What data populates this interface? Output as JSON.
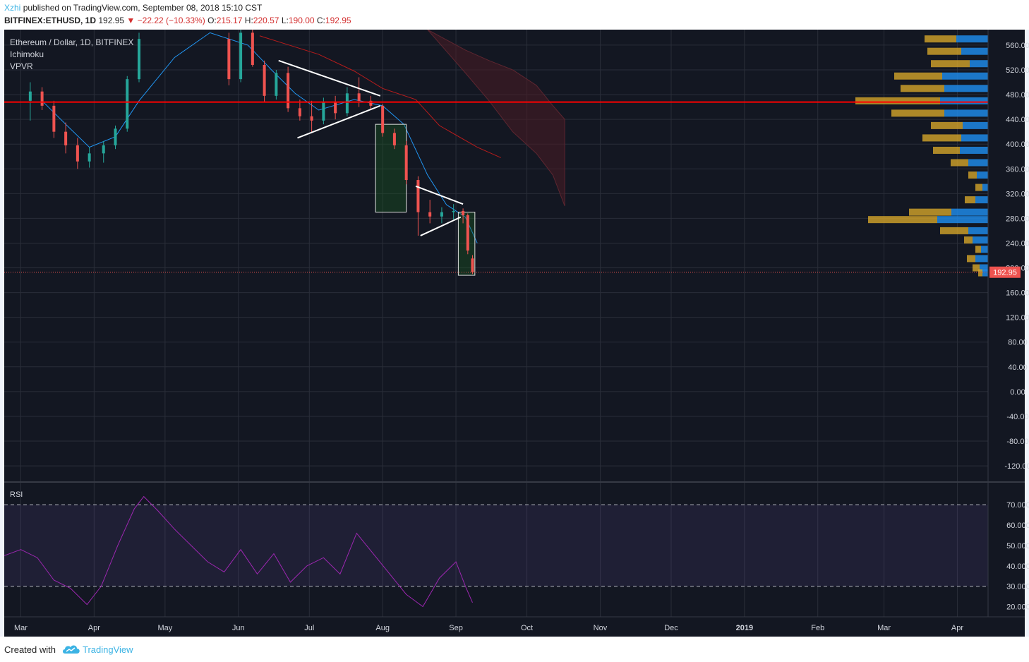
{
  "header": {
    "author": "Xzhi",
    "published": "published on TradingView.com, September 08, 2018 15:10 CST",
    "symbol": "BITFINEX:ETHUSD, 1D",
    "price": "192.95",
    "change_arrow": "▼",
    "change": "−22.22 (−10.33%)",
    "o_label": "O:",
    "o_value": "215.17",
    "h_label": "H:",
    "h_value": "220.57",
    "l_label": "L:",
    "l_value": "190.00",
    "c_label": "C:",
    "c_value": "192.95"
  },
  "legend": {
    "title": "Ethereum / Dollar, 1D, BITFINEX",
    "indicator1": "Ichimoku",
    "indicator2": "VPVR",
    "rsi_label": "RSI"
  },
  "footer": {
    "created": "Created with",
    "brand": "TradingView",
    "logo_icon": "tradingview-cloud-icon"
  },
  "colors": {
    "background": "#131722",
    "grid": "#2a2e39",
    "bull": "#26a69a",
    "bear": "#ef5350",
    "resistance": "#ff0000",
    "tenkan": "#2196f3",
    "kijun": "#b71c1c",
    "rsi": "#9c27b0",
    "vp_up": "#1e88e5",
    "vp_down": "#d4a52a"
  },
  "chart_data": [
    {
      "type": "candlestick",
      "title": "Ethereum / Dollar, 1D, BITFINEX",
      "x_ticks": [
        "Mar",
        "Apr",
        "May",
        "Jun",
        "Jul",
        "Aug",
        "Sep",
        "Oct",
        "Nov",
        "Dec",
        "2019",
        "Feb",
        "Mar",
        "Apr"
      ],
      "y_ticks": [
        "560.00",
        "520.00",
        "480.00",
        "440.00",
        "400.00",
        "360.00",
        "320.00",
        "280.00",
        "240.00",
        "200.00",
        "160.00",
        "120.00",
        "80.00",
        "40.00",
        "0.00",
        "-40.00",
        "-80.00",
        "-120.00"
      ],
      "ylim": [
        -145,
        585
      ],
      "last_price": 192.95,
      "last_price_label": "192.95",
      "resistance_level": 468,
      "x_range": [
        "2018-02-22",
        "2019-04-14"
      ],
      "candles": [
        [
          "2018-03-05",
          470,
          500,
          438,
          485
        ],
        [
          "2018-03-10",
          485,
          492,
          455,
          462
        ],
        [
          "2018-03-15",
          462,
          470,
          410,
          420
        ],
        [
          "2018-03-20",
          420,
          435,
          385,
          398
        ],
        [
          "2018-03-25",
          398,
          410,
          360,
          372
        ],
        [
          "2018-03-30",
          372,
          395,
          362,
          385
        ],
        [
          "2018-04-05",
          385,
          405,
          370,
          398
        ],
        [
          "2018-04-10",
          398,
          430,
          392,
          425
        ],
        [
          "2018-04-15",
          425,
          510,
          420,
          505
        ],
        [
          "2018-04-20",
          505,
          580,
          500,
          570
        ],
        [
          "2018-05-28",
          570,
          580,
          495,
          505
        ],
        [
          "2018-06-02",
          505,
          585,
          500,
          580
        ],
        [
          "2018-06-07",
          580,
          590,
          525,
          528
        ],
        [
          "2018-06-12",
          528,
          535,
          468,
          478
        ],
        [
          "2018-06-17",
          478,
          520,
          472,
          515
        ],
        [
          "2018-06-22",
          515,
          525,
          452,
          458
        ],
        [
          "2018-06-27",
          458,
          472,
          438,
          445
        ],
        [
          "2018-07-02",
          445,
          470,
          418,
          438
        ],
        [
          "2018-07-07",
          438,
          475,
          432,
          468
        ],
        [
          "2018-07-12",
          468,
          478,
          440,
          450
        ],
        [
          "2018-07-17",
          450,
          492,
          445,
          482
        ],
        [
          "2018-07-22",
          482,
          508,
          460,
          470
        ],
        [
          "2018-07-27",
          470,
          478,
          455,
          462
        ],
        [
          "2018-08-01",
          462,
          465,
          412,
          418
        ],
        [
          "2018-08-06",
          418,
          425,
          392,
          398
        ],
        [
          "2018-08-11",
          398,
          405,
          335,
          342
        ],
        [
          "2018-08-16",
          342,
          348,
          252,
          290
        ],
        [
          "2018-08-21",
          290,
          310,
          272,
          283
        ],
        [
          "2018-08-26",
          283,
          298,
          272,
          290
        ],
        [
          "2018-08-31",
          290,
          303,
          278,
          292
        ],
        [
          "2018-09-04",
          292,
          296,
          272,
          285
        ],
        [
          "2018-09-06",
          285,
          288,
          222,
          228
        ],
        [
          "2018-09-08",
          215.17,
          220.57,
          190.0,
          192.95
        ]
      ],
      "tenkan": [
        [
          "2018-03-10",
          470
        ],
        [
          "2018-03-20",
          432
        ],
        [
          "2018-03-30",
          395
        ],
        [
          "2018-04-10",
          412
        ],
        [
          "2018-04-20",
          470
        ],
        [
          "2018-05-05",
          540
        ],
        [
          "2018-05-20",
          580
        ],
        [
          "2018-06-05",
          560
        ],
        [
          "2018-06-15",
          520
        ],
        [
          "2018-06-25",
          482
        ],
        [
          "2018-07-05",
          455
        ],
        [
          "2018-07-20",
          472
        ],
        [
          "2018-08-01",
          462
        ],
        [
          "2018-08-10",
          432
        ],
        [
          "2018-08-20",
          350
        ],
        [
          "2018-08-28",
          302
        ],
        [
          "2018-09-05",
          282
        ],
        [
          "2018-09-10",
          240
        ]
      ],
      "kijun": [
        [
          "2018-06-10",
          575
        ],
        [
          "2018-07-05",
          545
        ],
        [
          "2018-07-20",
          518
        ],
        [
          "2018-08-01",
          490
        ],
        [
          "2018-08-15",
          472
        ],
        [
          "2018-08-25",
          430
        ],
        [
          "2018-09-10",
          395
        ],
        [
          "2018-09-20",
          378
        ]
      ],
      "cloud": [
        [
          "2018-08-20",
          585,
          585
        ],
        [
          "2018-09-05",
          552,
          515
        ],
        [
          "2018-09-15",
          535,
          470
        ],
        [
          "2018-09-25",
          520,
          420
        ],
        [
          "2018-10-05",
          495,
          385
        ],
        [
          "2018-10-12",
          462,
          350
        ],
        [
          "2018-10-17",
          440,
          300
        ]
      ],
      "triangles": [
        {
          "upper": [
            [
              "2018-06-18",
              535
            ],
            [
              "2018-07-31",
              478
            ]
          ],
          "lower": [
            [
              "2018-06-26",
              410
            ],
            [
              "2018-07-31",
              462
            ]
          ]
        },
        {
          "upper": [
            [
              "2018-08-15",
              332
            ],
            [
              "2018-09-04",
              303
            ]
          ],
          "lower": [
            [
              "2018-08-17",
              252
            ],
            [
              "2018-09-03",
              282
            ]
          ]
        }
      ],
      "boxes": [
        {
          "x0": "2018-07-29",
          "x1": "2018-08-11",
          "y_top": 432,
          "y_bottom": 290
        },
        {
          "x0": "2018-09-02",
          "x1": "2018-09-09",
          "y_top": 290,
          "y_bottom": 188
        }
      ],
      "volume_profile": [
        [
          570,
          45,
          45
        ],
        [
          550,
          38,
          48
        ],
        [
          530,
          26,
          55
        ],
        [
          510,
          65,
          68
        ],
        [
          490,
          62,
          62
        ],
        [
          470,
          68,
          120
        ],
        [
          450,
          62,
          75
        ],
        [
          430,
          36,
          45
        ],
        [
          410,
          38,
          55
        ],
        [
          390,
          40,
          38
        ],
        [
          370,
          28,
          25
        ],
        [
          350,
          16,
          12
        ],
        [
          330,
          8,
          10
        ],
        [
          310,
          18,
          15
        ],
        [
          290,
          52,
          60
        ],
        [
          278,
          72,
          98
        ],
        [
          260,
          28,
          40
        ],
        [
          245,
          22,
          12
        ],
        [
          230,
          10,
          8
        ],
        [
          215,
          18,
          12
        ],
        [
          200,
          12,
          10
        ],
        [
          192,
          8,
          6
        ]
      ]
    },
    {
      "type": "line",
      "title": "RSI",
      "y_ticks": [
        "70.0000",
        "60.0000",
        "50.0000",
        "40.0000",
        "30.0000",
        "20.0000"
      ],
      "ylim": [
        15,
        78
      ],
      "band": [
        30,
        70
      ],
      "x": [
        "2018-02-22",
        "2018-03-01",
        "2018-03-08",
        "2018-03-15",
        "2018-03-22",
        "2018-03-29",
        "2018-04-04",
        "2018-04-11",
        "2018-04-18",
        "2018-04-22",
        "2018-04-28",
        "2018-05-05",
        "2018-05-12",
        "2018-05-19",
        "2018-05-26",
        "2018-06-02",
        "2018-06-09",
        "2018-06-16",
        "2018-06-23",
        "2018-06-30",
        "2018-07-07",
        "2018-07-14",
        "2018-07-21",
        "2018-07-28",
        "2018-08-04",
        "2018-08-11",
        "2018-08-18",
        "2018-08-25",
        "2018-09-01",
        "2018-09-05",
        "2018-09-08"
      ],
      "values": [
        45,
        48,
        44,
        33,
        29,
        21,
        30,
        50,
        68,
        74,
        67,
        58,
        50,
        42,
        37,
        48,
        36,
        46,
        32,
        40,
        44,
        36,
        56,
        46,
        36,
        26,
        20,
        34,
        42,
        30,
        22
      ]
    }
  ]
}
